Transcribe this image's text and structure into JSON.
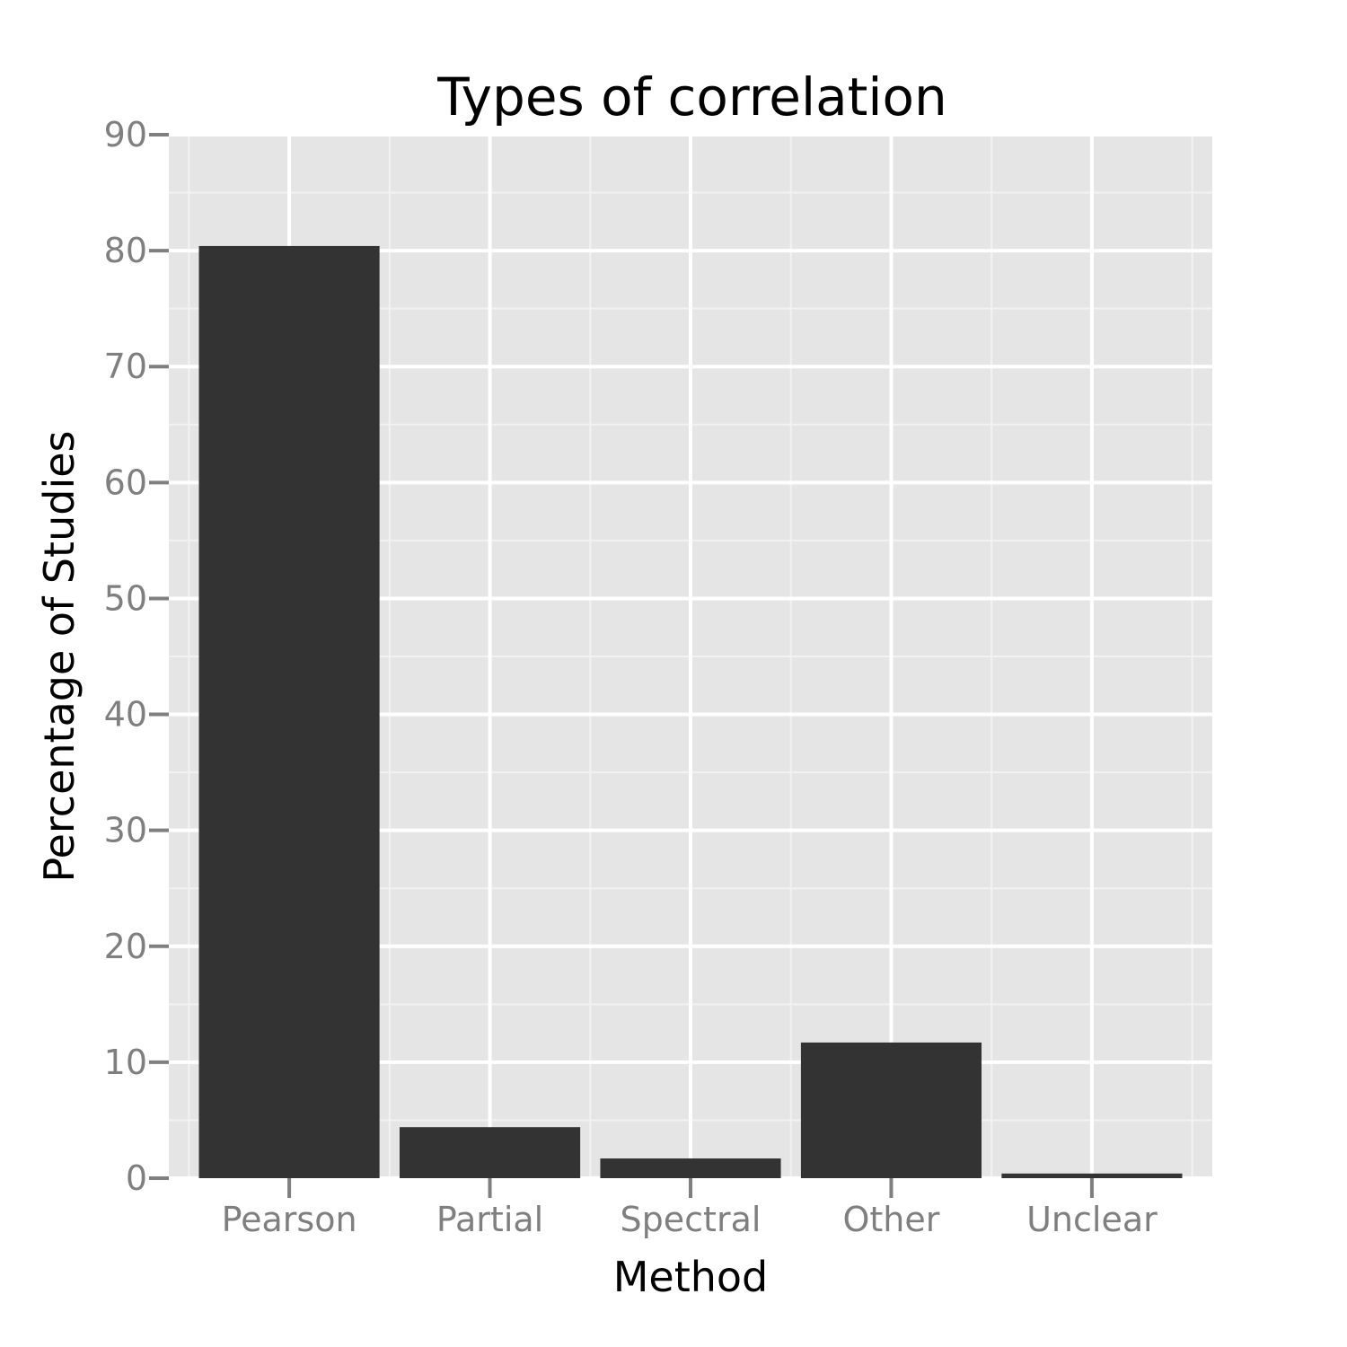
{
  "colors": {
    "panel": "#e5e5e5",
    "grid_major": "#ffffff",
    "grid_minor": "#f2f2f2",
    "bar_fill": "#333333",
    "tick_label": "#7f7f7f",
    "tick_mark": "#7f7f7f"
  },
  "chart_data": {
    "type": "bar",
    "title": "Types of correlation",
    "xlabel": "Method",
    "ylabel": "Percentage of Studies",
    "categories": [
      "Pearson",
      "Partial",
      "Spectral",
      "Other",
      "Unclear"
    ],
    "values": [
      80.4,
      4.4,
      1.7,
      11.7,
      0.4
    ],
    "ylim": [
      0,
      90
    ],
    "yticks": [
      "0",
      "10",
      "20",
      "30",
      "40",
      "50",
      "60",
      "70",
      "80",
      "90"
    ],
    "grid": true,
    "legend": "none"
  }
}
